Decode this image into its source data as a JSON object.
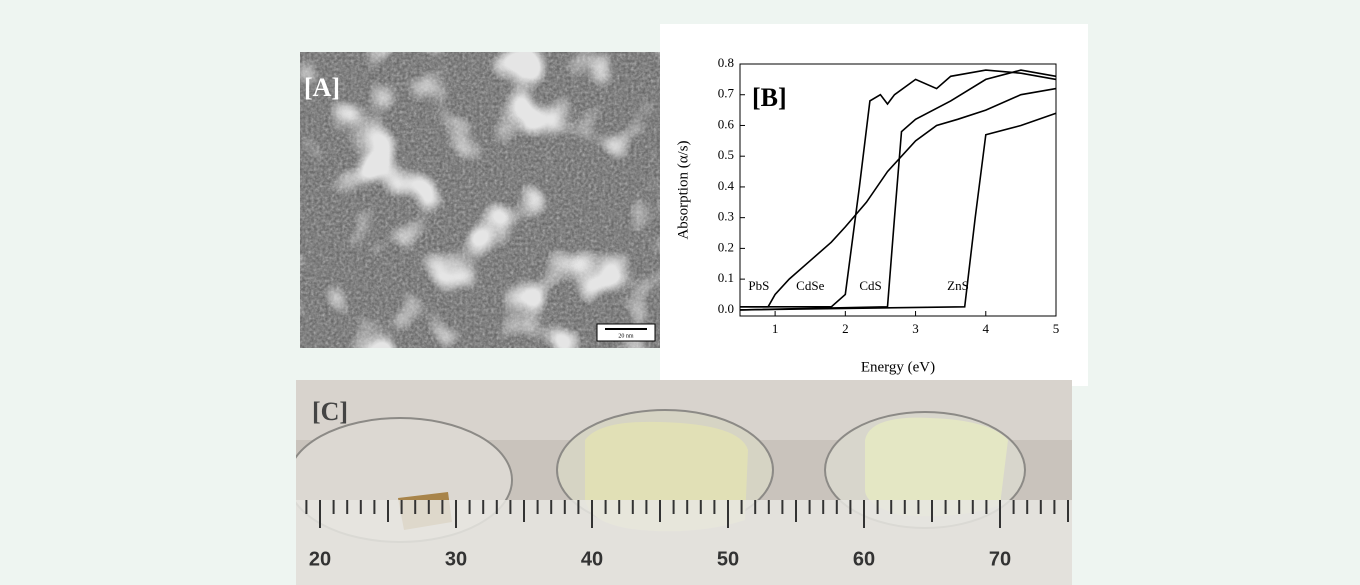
{
  "panels": {
    "a": {
      "label": "[A]",
      "scale_bar": "20 nm"
    },
    "c": {
      "label": "[C]",
      "ruler_labels": [
        20,
        30,
        40,
        50,
        60,
        70
      ]
    }
  },
  "chart_data": {
    "type": "line",
    "label": "[B]",
    "x_label": "Energy (eV)",
    "y_label": "Absorption (α/s)",
    "xlim": [
      0.5,
      5
    ],
    "ylim": [
      -0.02,
      0.8
    ],
    "xticks": [
      1,
      2,
      3,
      4,
      5
    ],
    "yticks": [
      {
        "value": 0,
        "label": "0.0"
      },
      0.1,
      0.2,
      0.3,
      0.4,
      0.5,
      0.6,
      0.7,
      0.8
    ],
    "series": [
      {
        "name": "PbS",
        "color": "#000000",
        "x": [
          0.5,
          0.9,
          1.0,
          1.2,
          1.5,
          1.8,
          2.0,
          2.3,
          2.6,
          3.0,
          3.3,
          3.6,
          4.0,
          4.5,
          5.0
        ],
        "values": [
          0.01,
          0.01,
          0.05,
          0.1,
          0.16,
          0.22,
          0.27,
          0.35,
          0.45,
          0.55,
          0.6,
          0.62,
          0.65,
          0.7,
          0.72
        ]
      },
      {
        "name": "CdSe",
        "color": "#000000",
        "x": [
          0.5,
          1.8,
          2.0,
          2.2,
          2.35,
          2.5,
          2.6,
          2.7,
          3.0,
          3.3,
          3.5,
          4.0,
          4.5,
          5.0
        ],
        "values": [
          0.01,
          0.01,
          0.05,
          0.4,
          0.68,
          0.7,
          0.67,
          0.7,
          0.75,
          0.72,
          0.76,
          0.78,
          0.77,
          0.75
        ]
      },
      {
        "name": "CdS",
        "color": "#000000",
        "x": [
          0.5,
          2.6,
          2.7,
          2.8,
          3.0,
          3.5,
          4.0,
          4.5,
          5.0
        ],
        "values": [
          0.0,
          0.01,
          0.3,
          0.58,
          0.62,
          0.68,
          0.75,
          0.78,
          0.76
        ]
      },
      {
        "name": "ZnS",
        "color": "#000000",
        "x": [
          0.5,
          3.7,
          3.85,
          4.0,
          4.5,
          5.0
        ],
        "values": [
          0.0,
          0.01,
          0.3,
          0.57,
          0.6,
          0.64
        ]
      }
    ]
  }
}
